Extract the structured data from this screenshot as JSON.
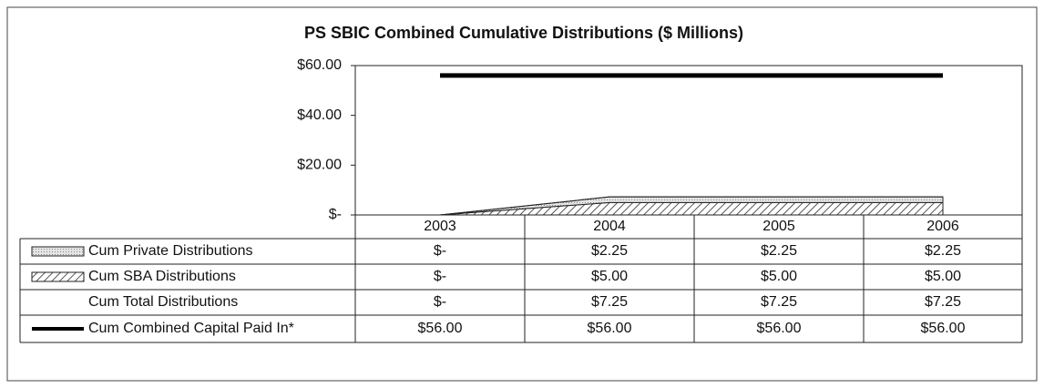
{
  "chart_data": {
    "type": "stacked_area_table",
    "title": "PS SBIC Combined Cumulative Distributions ($ Millions)",
    "categories": [
      "2003",
      "2004",
      "2005",
      "2006"
    ],
    "ylim": [
      0,
      60
    ],
    "yticks": [
      {
        "value": 0,
        "label": "$-"
      },
      {
        "value": 20,
        "label": "$20.00"
      },
      {
        "value": 40,
        "label": "$40.00"
      },
      {
        "value": 60,
        "label": "$60.00"
      }
    ],
    "grid": false,
    "series": [
      {
        "name": "Cum Private Distributions",
        "kind": "area",
        "color": "#d0d0d0",
        "values": [
          0,
          2.25,
          2.25,
          2.25
        ],
        "value_labels": [
          "$-",
          "$2.25",
          "$2.25",
          "$2.25"
        ]
      },
      {
        "name": "Cum SBA Distributions",
        "kind": "area",
        "color": "#555555",
        "fill_pattern": "hatch",
        "values": [
          0,
          5,
          5,
          5
        ],
        "value_labels": [
          "$-",
          "$5.00",
          "$5.00",
          "$5.00"
        ]
      },
      {
        "name": "Cum Total Distributions",
        "kind": "total",
        "values": [
          0,
          7.25,
          7.25,
          7.25
        ],
        "value_labels": [
          "$-",
          "$7.25",
          "$7.25",
          "$7.25"
        ]
      },
      {
        "name": "Cum Combined Capital Paid In*",
        "kind": "line",
        "color": "#000000",
        "values": [
          56,
          56,
          56,
          56
        ],
        "value_labels": [
          "$56.00",
          "$56.00",
          "$56.00",
          "$56.00"
        ]
      }
    ]
  }
}
